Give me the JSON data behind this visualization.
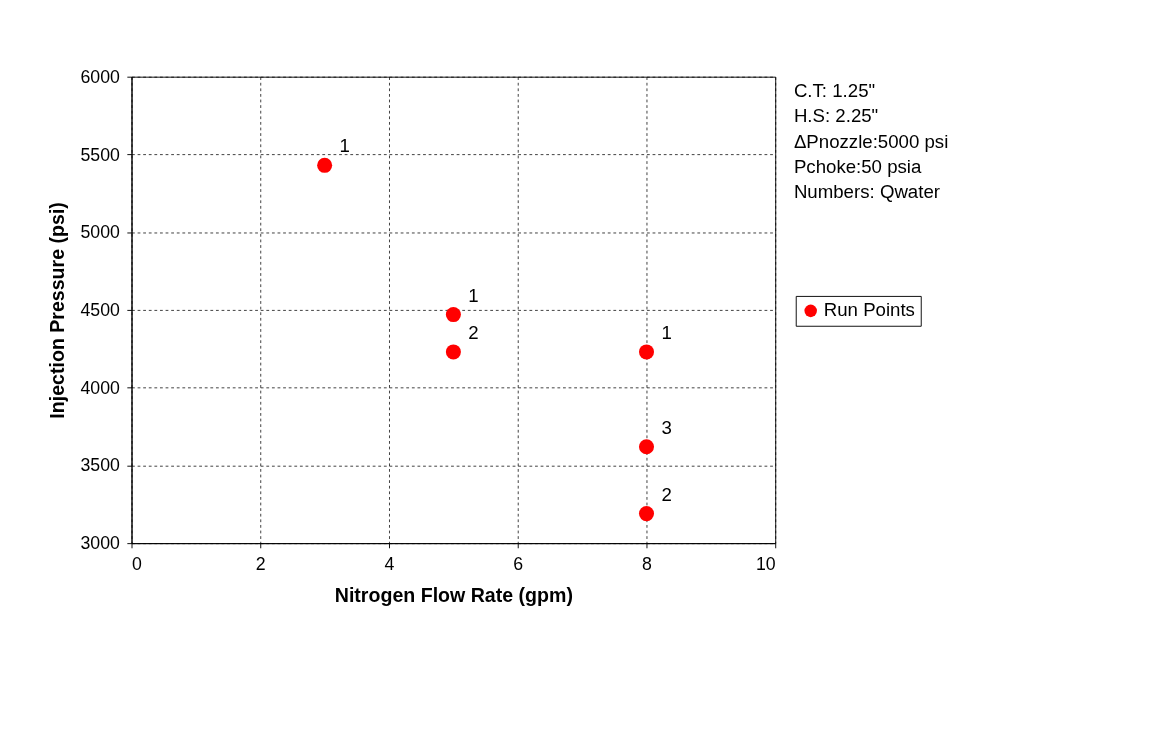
{
  "chart_data": {
    "type": "scatter",
    "xlabel": "Nitrogen Flow Rate (gpm)",
    "ylabel": "Injection Pressure (psi)",
    "x": [
      3,
      5,
      5,
      8,
      8,
      8
    ],
    "series": [
      {
        "name": "Run Points",
        "color": "#ff0000",
        "values": [
          5430,
          4470,
          4230,
          4230,
          3620,
          3190
        ]
      }
    ],
    "xlim": [
      0,
      10
    ],
    "xticks": [
      0,
      2,
      4,
      6,
      8,
      10
    ],
    "ylim": [
      3000,
      6000
    ],
    "yticks": [
      3000,
      3500,
      4000,
      4500,
      5000,
      5500,
      6000
    ],
    "grid": true,
    "legend": "right",
    "marker": "circle",
    "annotations": [
      {
        "text": "1",
        "x": 3,
        "y": 5430
      },
      {
        "text": "1",
        "x": 5,
        "y": 4470
      },
      {
        "text": "2",
        "x": 5,
        "y": 4230
      },
      {
        "text": "1",
        "x": 8,
        "y": 4230
      },
      {
        "text": "3",
        "x": 8,
        "y": 3620
      },
      {
        "text": "2",
        "x": 8,
        "y": 3190
      },
      "C.T: 1.25\"",
      "H.S: 2.25\"",
      "ΔPnozzle:5000 psi",
      "Pchoke:50 psia",
      "Numbers: Qwater"
    ]
  }
}
